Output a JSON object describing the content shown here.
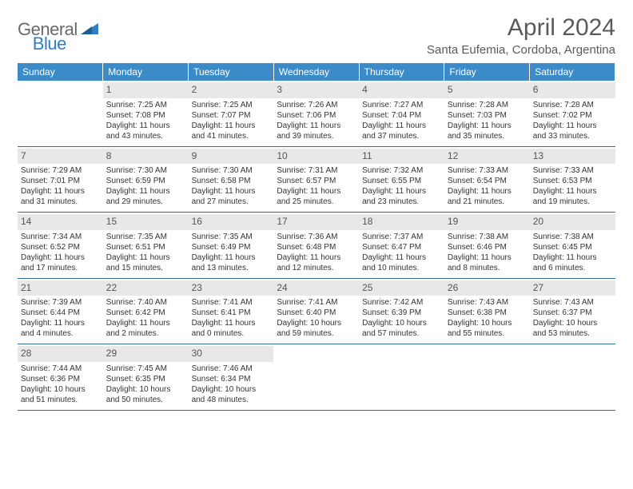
{
  "logo": {
    "part1": "General",
    "part2": "Blue"
  },
  "title": "April 2024",
  "location": "Santa Eufemia, Cordoba, Argentina",
  "colors": {
    "header_bg": "#3b8bc9",
    "header_fg": "#ffffff",
    "daynum_bg": "#e8e8e8",
    "border": "#2f6fa8",
    "logo_gray": "#6a6a6a",
    "logo_blue": "#2f7fc2"
  },
  "weekdays": [
    "Sunday",
    "Monday",
    "Tuesday",
    "Wednesday",
    "Thursday",
    "Friday",
    "Saturday"
  ],
  "weeks": [
    [
      {
        "day": "",
        "lines": []
      },
      {
        "day": "1",
        "lines": [
          "Sunrise: 7:25 AM",
          "Sunset: 7:08 PM",
          "Daylight: 11 hours",
          "and 43 minutes."
        ]
      },
      {
        "day": "2",
        "lines": [
          "Sunrise: 7:25 AM",
          "Sunset: 7:07 PM",
          "Daylight: 11 hours",
          "and 41 minutes."
        ]
      },
      {
        "day": "3",
        "lines": [
          "Sunrise: 7:26 AM",
          "Sunset: 7:06 PM",
          "Daylight: 11 hours",
          "and 39 minutes."
        ]
      },
      {
        "day": "4",
        "lines": [
          "Sunrise: 7:27 AM",
          "Sunset: 7:04 PM",
          "Daylight: 11 hours",
          "and 37 minutes."
        ]
      },
      {
        "day": "5",
        "lines": [
          "Sunrise: 7:28 AM",
          "Sunset: 7:03 PM",
          "Daylight: 11 hours",
          "and 35 minutes."
        ]
      },
      {
        "day": "6",
        "lines": [
          "Sunrise: 7:28 AM",
          "Sunset: 7:02 PM",
          "Daylight: 11 hours",
          "and 33 minutes."
        ]
      }
    ],
    [
      {
        "day": "7",
        "lines": [
          "Sunrise: 7:29 AM",
          "Sunset: 7:01 PM",
          "Daylight: 11 hours",
          "and 31 minutes."
        ]
      },
      {
        "day": "8",
        "lines": [
          "Sunrise: 7:30 AM",
          "Sunset: 6:59 PM",
          "Daylight: 11 hours",
          "and 29 minutes."
        ]
      },
      {
        "day": "9",
        "lines": [
          "Sunrise: 7:30 AM",
          "Sunset: 6:58 PM",
          "Daylight: 11 hours",
          "and 27 minutes."
        ]
      },
      {
        "day": "10",
        "lines": [
          "Sunrise: 7:31 AM",
          "Sunset: 6:57 PM",
          "Daylight: 11 hours",
          "and 25 minutes."
        ]
      },
      {
        "day": "11",
        "lines": [
          "Sunrise: 7:32 AM",
          "Sunset: 6:55 PM",
          "Daylight: 11 hours",
          "and 23 minutes."
        ]
      },
      {
        "day": "12",
        "lines": [
          "Sunrise: 7:33 AM",
          "Sunset: 6:54 PM",
          "Daylight: 11 hours",
          "and 21 minutes."
        ]
      },
      {
        "day": "13",
        "lines": [
          "Sunrise: 7:33 AM",
          "Sunset: 6:53 PM",
          "Daylight: 11 hours",
          "and 19 minutes."
        ]
      }
    ],
    [
      {
        "day": "14",
        "lines": [
          "Sunrise: 7:34 AM",
          "Sunset: 6:52 PM",
          "Daylight: 11 hours",
          "and 17 minutes."
        ]
      },
      {
        "day": "15",
        "lines": [
          "Sunrise: 7:35 AM",
          "Sunset: 6:51 PM",
          "Daylight: 11 hours",
          "and 15 minutes."
        ]
      },
      {
        "day": "16",
        "lines": [
          "Sunrise: 7:35 AM",
          "Sunset: 6:49 PM",
          "Daylight: 11 hours",
          "and 13 minutes."
        ]
      },
      {
        "day": "17",
        "lines": [
          "Sunrise: 7:36 AM",
          "Sunset: 6:48 PM",
          "Daylight: 11 hours",
          "and 12 minutes."
        ]
      },
      {
        "day": "18",
        "lines": [
          "Sunrise: 7:37 AM",
          "Sunset: 6:47 PM",
          "Daylight: 11 hours",
          "and 10 minutes."
        ]
      },
      {
        "day": "19",
        "lines": [
          "Sunrise: 7:38 AM",
          "Sunset: 6:46 PM",
          "Daylight: 11 hours",
          "and 8 minutes."
        ]
      },
      {
        "day": "20",
        "lines": [
          "Sunrise: 7:38 AM",
          "Sunset: 6:45 PM",
          "Daylight: 11 hours",
          "and 6 minutes."
        ]
      }
    ],
    [
      {
        "day": "21",
        "lines": [
          "Sunrise: 7:39 AM",
          "Sunset: 6:44 PM",
          "Daylight: 11 hours",
          "and 4 minutes."
        ]
      },
      {
        "day": "22",
        "lines": [
          "Sunrise: 7:40 AM",
          "Sunset: 6:42 PM",
          "Daylight: 11 hours",
          "and 2 minutes."
        ]
      },
      {
        "day": "23",
        "lines": [
          "Sunrise: 7:41 AM",
          "Sunset: 6:41 PM",
          "Daylight: 11 hours",
          "and 0 minutes."
        ]
      },
      {
        "day": "24",
        "lines": [
          "Sunrise: 7:41 AM",
          "Sunset: 6:40 PM",
          "Daylight: 10 hours",
          "and 59 minutes."
        ]
      },
      {
        "day": "25",
        "lines": [
          "Sunrise: 7:42 AM",
          "Sunset: 6:39 PM",
          "Daylight: 10 hours",
          "and 57 minutes."
        ]
      },
      {
        "day": "26",
        "lines": [
          "Sunrise: 7:43 AM",
          "Sunset: 6:38 PM",
          "Daylight: 10 hours",
          "and 55 minutes."
        ]
      },
      {
        "day": "27",
        "lines": [
          "Sunrise: 7:43 AM",
          "Sunset: 6:37 PM",
          "Daylight: 10 hours",
          "and 53 minutes."
        ]
      }
    ],
    [
      {
        "day": "28",
        "lines": [
          "Sunrise: 7:44 AM",
          "Sunset: 6:36 PM",
          "Daylight: 10 hours",
          "and 51 minutes."
        ]
      },
      {
        "day": "29",
        "lines": [
          "Sunrise: 7:45 AM",
          "Sunset: 6:35 PM",
          "Daylight: 10 hours",
          "and 50 minutes."
        ]
      },
      {
        "day": "30",
        "lines": [
          "Sunrise: 7:46 AM",
          "Sunset: 6:34 PM",
          "Daylight: 10 hours",
          "and 48 minutes."
        ]
      },
      {
        "day": "",
        "lines": []
      },
      {
        "day": "",
        "lines": []
      },
      {
        "day": "",
        "lines": []
      },
      {
        "day": "",
        "lines": []
      }
    ]
  ]
}
